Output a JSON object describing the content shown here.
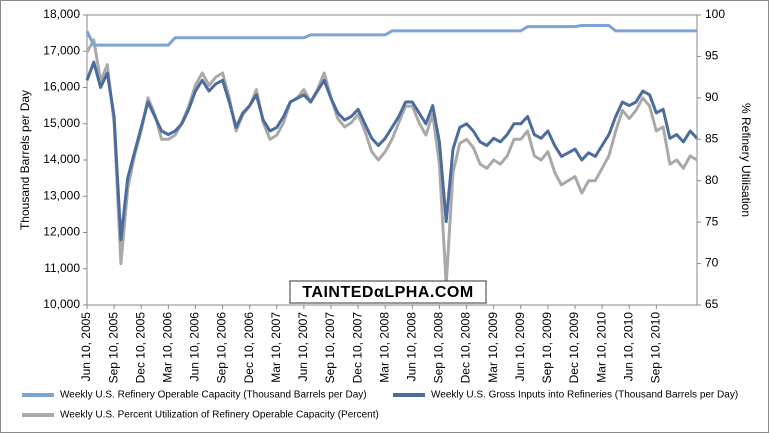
{
  "chart_data": {
    "type": "line",
    "ylabel": "Thousand Barrels per Day",
    "y2label": "% Refinery Utilisation",
    "watermark": "TAINTEDαLPHA.COM",
    "categories": [
      "Jun 10, 2005",
      null,
      null,
      null,
      "Sep 10, 2005",
      null,
      null,
      null,
      "Dec 10, 2005",
      null,
      null,
      null,
      "Mar 10, 2006",
      null,
      null,
      null,
      "Jun 10, 2006",
      null,
      null,
      null,
      "Sep 10, 2006",
      null,
      null,
      null,
      "Dec 10, 2006",
      null,
      null,
      null,
      "Mar 10, 2007",
      null,
      null,
      null,
      "Jun 10, 2007",
      null,
      null,
      null,
      "Sep 10, 2007",
      null,
      null,
      null,
      "Dec 10, 2007",
      null,
      null,
      null,
      "Mar 10, 2008",
      null,
      null,
      null,
      "Jun 10, 2008",
      null,
      null,
      null,
      "Sep 10, 2008",
      null,
      null,
      null,
      "Dec 10, 2008",
      null,
      null,
      null,
      "Mar 10, 2009",
      null,
      null,
      null,
      "Jun 10, 2009",
      null,
      null,
      null,
      "Sep 10, 2009",
      null,
      null,
      null,
      "Dec 10, 2009",
      null,
      null,
      null,
      "Mar 10, 2010",
      null,
      null,
      null,
      "Jun 10, 2010",
      null,
      null,
      null,
      "Sep 10, 2010",
      null,
      null,
      null,
      null,
      null,
      null
    ],
    "series": [
      {
        "name": "Weekly U.S. Refinery Operable Capacity  (Thousand Barrels per Day)",
        "color": "#7ca3d6",
        "axis": "y",
        "values": [
          17550,
          17170,
          17170,
          17170,
          17170,
          17170,
          17170,
          17170,
          17170,
          17170,
          17170,
          17170,
          17170,
          17370,
          17370,
          17370,
          17370,
          17370,
          17370,
          17370,
          17370,
          17370,
          17370,
          17370,
          17370,
          17370,
          17370,
          17370,
          17370,
          17370,
          17370,
          17370,
          17370,
          17450,
          17450,
          17450,
          17450,
          17450,
          17450,
          17450,
          17450,
          17450,
          17450,
          17450,
          17450,
          17560,
          17560,
          17560,
          17560,
          17560,
          17560,
          17560,
          17560,
          17560,
          17560,
          17560,
          17560,
          17560,
          17560,
          17560,
          17560,
          17560,
          17560,
          17560,
          17560,
          17680,
          17680,
          17680,
          17680,
          17680,
          17680,
          17680,
          17680,
          17710,
          17710,
          17710,
          17710,
          17710,
          17560,
          17560,
          17560,
          17560,
          17560,
          17560,
          17560,
          17560,
          17560,
          17560,
          17560,
          17560,
          17560
        ]
      },
      {
        "name": "Weekly U.S. Gross Inputs into Refineries  (Thousand Barrels per Day)",
        "color": "#4c6c9e",
        "axis": "y",
        "values": [
          16200,
          16700,
          16000,
          16400,
          15200,
          11800,
          13500,
          14200,
          14900,
          15600,
          15200,
          14800,
          14700,
          14800,
          15000,
          15400,
          15900,
          16200,
          15900,
          16100,
          16200,
          15600,
          14900,
          15300,
          15500,
          15800,
          15100,
          14800,
          14900,
          15200,
          15600,
          15700,
          15800,
          15600,
          15900,
          16200,
          15700,
          15300,
          15100,
          15200,
          15400,
          15000,
          14600,
          14400,
          14600,
          14900,
          15200,
          15600,
          15600,
          15300,
          15000,
          15500,
          14500,
          12300,
          14300,
          14900,
          15000,
          14800,
          14500,
          14400,
          14600,
          14500,
          14700,
          15000,
          15000,
          15200,
          14700,
          14600,
          14800,
          14400,
          14100,
          14200,
          14300,
          14000,
          14200,
          14100,
          14400,
          14700,
          15200,
          15600,
          15500,
          15600,
          15900,
          15800,
          15300,
          15400,
          14600,
          14700,
          14500,
          14800,
          14600
        ]
      },
      {
        "name": "Weekly U.S. Percent Utilization of Refinery Operable Capacity  (Percent)",
        "color": "#a9a9a9",
        "axis": "y2",
        "values": [
          95.5,
          97,
          92,
          94,
          87,
          70,
          79,
          83,
          86,
          90,
          88,
          85,
          85,
          85.5,
          87,
          89,
          91.5,
          93,
          91.5,
          92.5,
          93,
          90,
          86,
          88,
          89,
          91,
          87,
          85,
          85.5,
          87,
          89.5,
          90,
          91,
          89.5,
          91,
          93,
          90,
          87.5,
          86.5,
          87,
          88,
          86,
          83.5,
          82.5,
          83.5,
          85,
          87,
          89,
          89,
          87,
          85.5,
          88,
          82,
          67.5,
          81,
          84.5,
          85,
          84,
          82,
          81.5,
          82.5,
          82,
          83,
          85,
          85,
          86,
          83,
          82.5,
          83.5,
          81,
          79.5,
          80,
          80.5,
          78.5,
          80,
          80,
          81.5,
          83,
          86,
          88.5,
          87.5,
          88.5,
          90,
          89,
          86,
          86.5,
          82,
          82.5,
          81.5,
          83,
          82.5
        ]
      }
    ],
    "ylim": [
      10000,
      18000
    ],
    "yticks": [
      {
        "value": 10000,
        "label": "10,000"
      },
      {
        "value": 11000,
        "label": "11,000"
      },
      {
        "value": 12000,
        "label": "12,000"
      },
      {
        "value": 13000,
        "label": "13,000"
      },
      {
        "value": 14000,
        "label": "14,000"
      },
      {
        "value": 15000,
        "label": "15,000"
      },
      {
        "value": 16000,
        "label": "16,000"
      },
      {
        "value": 17000,
        "label": "17,000"
      },
      {
        "value": 18000,
        "label": "18,000"
      }
    ],
    "y2lim": [
      65,
      100
    ],
    "y2ticks": [
      65,
      70,
      75,
      80,
      85,
      90,
      95,
      100
    ],
    "grid": false
  }
}
